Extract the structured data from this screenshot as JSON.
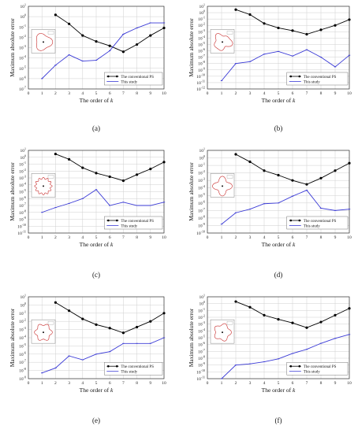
{
  "chart_data": [
    {
      "type": "line",
      "panel_label": "(a)",
      "xlabel": "The order of ",
      "xlabel_var": "k",
      "ylabel": "Maximum absolute error",
      "xlim": [
        0,
        10
      ],
      "ylim_exp": [
        -7,
        1
      ],
      "xticks": [
        0,
        1,
        2,
        3,
        4,
        5,
        6,
        7,
        8,
        9,
        10
      ],
      "series": [
        {
          "name": "The conventional PS",
          "color": "#000000",
          "marker": "circle",
          "x": [
            2,
            3,
            4,
            5,
            6,
            7,
            8,
            9,
            10
          ],
          "y": [
            1.5,
            0.2,
            0.015,
            0.004,
            0.0015,
            0.0004,
            0.002,
            0.015,
            0.08
          ]
        },
        {
          "name": "This study",
          "color": "#3a3ad6",
          "marker": "line",
          "x": [
            1,
            2,
            3,
            4,
            5,
            6,
            7,
            8,
            9,
            10
          ],
          "y": [
            1e-06,
            2e-05,
            0.0002,
            5e-05,
            6e-05,
            0.0005,
            0.02,
            0.08,
            0.25,
            0.25
          ]
        }
      ]
    },
    {
      "type": "line",
      "panel_label": "(b)",
      "xlabel": "The order of ",
      "xlabel_var": "k",
      "ylabel": "Maximum absolute error",
      "xlim": [
        0,
        10
      ],
      "ylim_exp": [
        -12,
        1
      ],
      "xticks": [
        0,
        1,
        2,
        3,
        4,
        5,
        6,
        7,
        8,
        9,
        10
      ],
      "series": [
        {
          "name": "The conventional PS",
          "color": "#000000",
          "marker": "circle",
          "x": [
            2,
            3,
            4,
            5,
            6,
            7,
            8,
            9,
            10
          ],
          "y": [
            3,
            0.5,
            0.02,
            0.004,
            0.0015,
            0.0004,
            0.002,
            0.01,
            0.08
          ]
        },
        {
          "name": "This study",
          "color": "#3a3ad6",
          "marker": "line",
          "x": [
            1,
            2,
            3,
            4,
            5,
            6,
            7,
            8,
            9,
            10
          ],
          "y": [
            2e-11,
            1e-08,
            2e-08,
            3e-07,
            8e-07,
            1.5e-07,
            1.5e-06,
            1e-07,
            3e-09,
            2e-07
          ]
        }
      ]
    },
    {
      "type": "line",
      "panel_label": "(c)",
      "xlabel": "The order of ",
      "xlabel_var": "k",
      "ylabel": "Maximum absolute error",
      "xlim": [
        0,
        10
      ],
      "ylim_exp": [
        -11,
        1
      ],
      "xticks": [
        0,
        1,
        2,
        3,
        4,
        5,
        6,
        7,
        8,
        9,
        10
      ],
      "series": [
        {
          "name": "The conventional PS",
          "color": "#000000",
          "marker": "circle",
          "x": [
            2,
            3,
            4,
            5,
            6,
            7,
            8,
            9,
            10
          ],
          "y": [
            3,
            0.5,
            0.03,
            0.005,
            0.0015,
            0.0004,
            0.003,
            0.02,
            0.2
          ]
        },
        {
          "name": "This study",
          "color": "#3a3ad6",
          "marker": "line",
          "x": [
            1,
            2,
            3,
            4,
            5,
            6,
            7,
            8,
            9,
            10
          ],
          "y": [
            1e-08,
            5e-08,
            2e-07,
            1e-06,
            2e-05,
            1e-07,
            3e-07,
            1e-07,
            1e-07,
            3e-07
          ]
        }
      ]
    },
    {
      "type": "line",
      "panel_label": "(d)",
      "xlabel": "The order of ",
      "xlabel_var": "k",
      "ylabel": "Maximum absolute error",
      "xlim": [
        0,
        10
      ],
      "ylim_exp": [
        -10,
        1
      ],
      "xticks": [
        0,
        1,
        2,
        3,
        4,
        5,
        6,
        7,
        8,
        9,
        10
      ],
      "series": [
        {
          "name": "The conventional PS",
          "color": "#000000",
          "marker": "circle",
          "x": [
            2,
            3,
            4,
            5,
            6,
            7,
            8,
            9,
            10
          ],
          "y": [
            3,
            0.3,
            0.02,
            0.005,
            0.001,
            0.0003,
            0.002,
            0.02,
            0.2
          ]
        },
        {
          "name": "This study",
          "color": "#3a3ad6",
          "marker": "line",
          "x": [
            1,
            2,
            3,
            4,
            5,
            6,
            7,
            8,
            9,
            10
          ],
          "y": [
            1.5e-09,
            5e-08,
            1.5e-07,
            8e-07,
            1e-06,
            8e-06,
            5e-05,
            2e-07,
            1e-07,
            1.5e-07
          ]
        }
      ]
    },
    {
      "type": "line",
      "panel_label": "(e)",
      "xlabel": "The order of ",
      "xlabel_var": "k",
      "ylabel": "Maximum absolute error",
      "xlim": [
        0,
        10
      ],
      "ylim_exp": [
        -9,
        1
      ],
      "xticks": [
        0,
        1,
        2,
        3,
        4,
        5,
        6,
        7,
        8,
        9,
        10
      ],
      "series": [
        {
          "name": "The conventional PS",
          "color": "#000000",
          "marker": "circle",
          "x": [
            2,
            3,
            4,
            5,
            6,
            7,
            8,
            9,
            10
          ],
          "y": [
            2,
            0.2,
            0.02,
            0.004,
            0.0015,
            0.0004,
            0.002,
            0.01,
            0.1
          ]
        },
        {
          "name": "This study",
          "color": "#3a3ad6",
          "marker": "line",
          "x": [
            1,
            2,
            3,
            4,
            5,
            6,
            7,
            8,
            9,
            10
          ],
          "y": [
            5e-09,
            2e-08,
            6e-07,
            2e-07,
            1e-06,
            2e-06,
            2e-05,
            2e-05,
            2e-05,
            0.0001
          ]
        }
      ]
    },
    {
      "type": "line",
      "panel_label": "(f)",
      "xlabel": "The order of ",
      "xlabel_var": "k",
      "ylabel": "Maximum absolute error",
      "xlim": [
        0,
        10
      ],
      "ylim_exp": [
        -11,
        1
      ],
      "xticks": [
        0,
        1,
        2,
        3,
        4,
        5,
        6,
        7,
        8,
        9,
        10
      ],
      "series": [
        {
          "name": "The conventional PS",
          "color": "#000000",
          "marker": "circle",
          "x": [
            2,
            3,
            4,
            5,
            6,
            7,
            8,
            9,
            10
          ],
          "y": [
            2,
            0.3,
            0.02,
            0.005,
            0.0015,
            0.0003,
            0.002,
            0.02,
            0.2
          ]
        },
        {
          "name": "This study",
          "color": "#3a3ad6",
          "marker": "line",
          "x": [
            1,
            2,
            3,
            4,
            5,
            6,
            7,
            8,
            9,
            10
          ],
          "y": [
            1e-11,
            1e-09,
            1.5e-09,
            3e-09,
            8e-09,
            5e-08,
            2e-07,
            1.5e-06,
            8e-06,
            3e-05
          ]
        }
      ]
    }
  ]
}
